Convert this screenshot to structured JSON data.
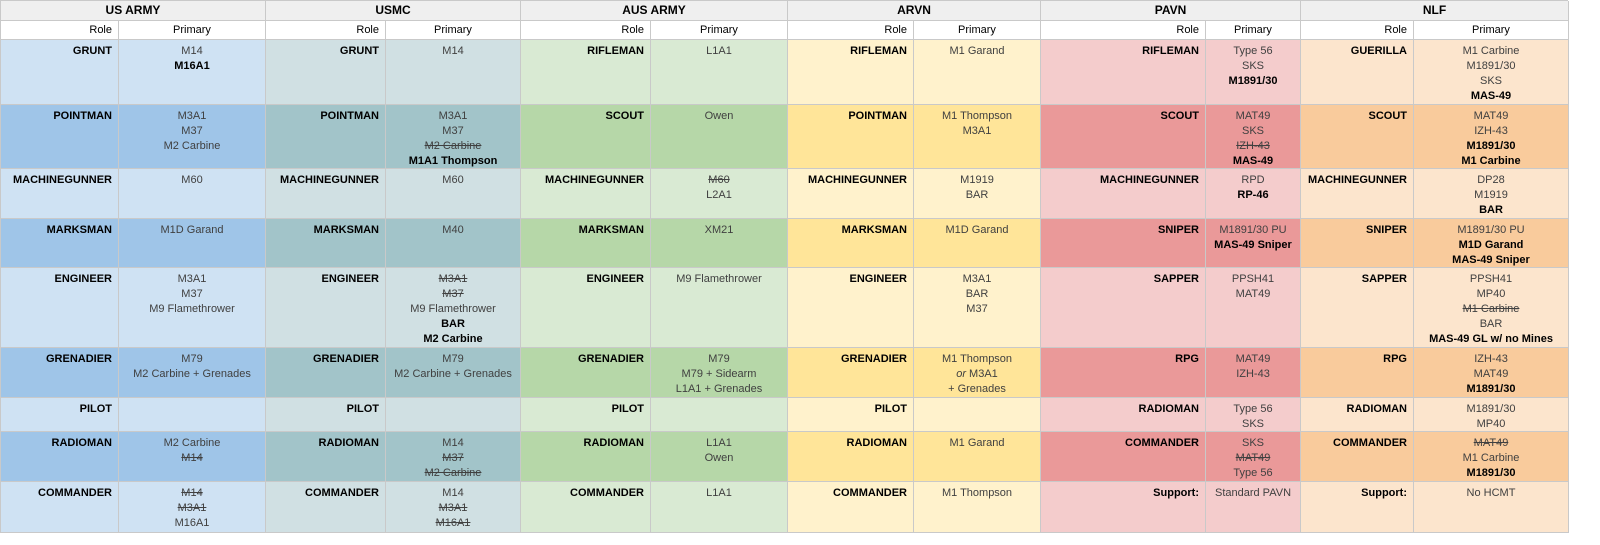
{
  "subheader": {
    "role": "Role",
    "primary": "Primary"
  },
  "grid_color": "#c9c9c9",
  "header_bg": "#efefef",
  "factions": [
    {
      "name": "US ARMY",
      "colors": {
        "light": "#cfe2f3",
        "dark": "#9fc5e8"
      },
      "rows": [
        {
          "role": "GRUNT",
          "weapons": [
            {
              "t": "M14"
            },
            {
              "t": "M16A1",
              "style": "b"
            }
          ]
        },
        {
          "role": "POINTMAN",
          "weapons": [
            {
              "t": "M3A1"
            },
            {
              "t": "M37"
            },
            {
              "t": "M2 Carbine"
            }
          ]
        },
        {
          "role": "MACHINEGUNNER",
          "weapons": [
            {
              "t": "M60"
            }
          ]
        },
        {
          "role": "MARKSMAN",
          "weapons": [
            {
              "t": "M1D Garand"
            }
          ]
        },
        {
          "role": "ENGINEER",
          "weapons": [
            {
              "t": "M3A1"
            },
            {
              "t": "M37"
            },
            {
              "t": "M9 Flamethrower"
            }
          ]
        },
        {
          "role": "GRENADIER",
          "weapons": [
            {
              "t": "M79"
            },
            {
              "t": "M2 Carbine + Grenades"
            }
          ]
        },
        {
          "role": "PILOT",
          "weapons": []
        },
        {
          "role": "RADIOMAN",
          "weapons": [
            {
              "t": "M2 Carbine"
            },
            {
              "t": "M14",
              "style": "s"
            }
          ]
        },
        {
          "role": "COMMANDER",
          "weapons": [
            {
              "t": "M14",
              "style": "s"
            },
            {
              "t": "M3A1",
              "style": "s"
            },
            {
              "t": "M16A1"
            }
          ]
        }
      ]
    },
    {
      "name": "USMC",
      "colors": {
        "light": "#d0e0e3",
        "dark": "#a2c4c9"
      },
      "rows": [
        {
          "role": "GRUNT",
          "weapons": [
            {
              "t": "M14"
            }
          ]
        },
        {
          "role": "POINTMAN",
          "weapons": [
            {
              "t": "M3A1"
            },
            {
              "t": "M37"
            },
            {
              "t": "M2 Carbine",
              "style": "s"
            },
            {
              "t": "M1A1 Thompson",
              "style": "b"
            }
          ]
        },
        {
          "role": "MACHINEGUNNER",
          "weapons": [
            {
              "t": "M60"
            }
          ]
        },
        {
          "role": "MARKSMAN",
          "weapons": [
            {
              "t": "M40"
            }
          ]
        },
        {
          "role": "ENGINEER",
          "weapons": [
            {
              "t": "M3A1",
              "style": "s"
            },
            {
              "t": "M37",
              "style": "s"
            },
            {
              "t": "M9 Flamethrower"
            },
            {
              "t": "BAR",
              "style": "b"
            },
            {
              "t": "M2 Carbine",
              "style": "b"
            }
          ]
        },
        {
          "role": "GRENADIER",
          "weapons": [
            {
              "t": "M79"
            },
            {
              "t": "M2 Carbine + Grenades"
            }
          ]
        },
        {
          "role": "PILOT",
          "weapons": []
        },
        {
          "role": "RADIOMAN",
          "weapons": [
            {
              "t": "M14"
            },
            {
              "t": "M37",
              "style": "s"
            },
            {
              "t": "M2 Carbine",
              "style": "s"
            }
          ]
        },
        {
          "role": "COMMANDER",
          "weapons": [
            {
              "t": "M14"
            },
            {
              "t": "M3A1",
              "style": "s"
            },
            {
              "t": "M16A1",
              "style": "s"
            }
          ]
        }
      ]
    },
    {
      "name": "AUS ARMY",
      "colors": {
        "light": "#d9ead3",
        "dark": "#b6d7a8"
      },
      "rows": [
        {
          "role": "RIFLEMAN",
          "weapons": [
            {
              "t": "L1A1"
            }
          ]
        },
        {
          "role": "SCOUT",
          "weapons": [
            {
              "t": "Owen"
            }
          ]
        },
        {
          "role": "MACHINEGUNNER",
          "weapons": [
            {
              "t": "M60",
              "style": "s"
            },
            {
              "t": "L2A1"
            }
          ]
        },
        {
          "role": "MARKSMAN",
          "weapons": [
            {
              "t": "XM21"
            }
          ]
        },
        {
          "role": "ENGINEER",
          "weapons": [
            {
              "t": "M9 Flamethrower"
            }
          ]
        },
        {
          "role": "GRENADIER",
          "weapons": [
            {
              "t": "M79"
            },
            {
              "t": "M79 + Sidearm"
            },
            {
              "t": "L1A1 + Grenades"
            }
          ]
        },
        {
          "role": "PILOT",
          "weapons": []
        },
        {
          "role": "RADIOMAN",
          "weapons": [
            {
              "t": "L1A1"
            },
            {
              "t": "Owen"
            }
          ]
        },
        {
          "role": "COMMANDER",
          "weapons": [
            {
              "t": "L1A1"
            }
          ]
        }
      ]
    },
    {
      "name": "ARVN",
      "colors": {
        "light": "#fff2cc",
        "dark": "#ffe599"
      },
      "rows": [
        {
          "role": "RIFLEMAN",
          "weapons": [
            {
              "t": "M1 Garand"
            }
          ]
        },
        {
          "role": "POINTMAN",
          "weapons": [
            {
              "t": "M1 Thompson"
            },
            {
              "t": "M3A1"
            }
          ]
        },
        {
          "role": "MACHINEGUNNER",
          "weapons": [
            {
              "t": "M1919"
            },
            {
              "t": "BAR"
            }
          ]
        },
        {
          "role": "MARKSMAN",
          "weapons": [
            {
              "t": "M1D Garand"
            }
          ]
        },
        {
          "role": "ENGINEER",
          "weapons": [
            {
              "t": "M3A1"
            },
            {
              "t": "BAR"
            },
            {
              "t": "M37"
            }
          ]
        },
        {
          "role": "GRENADIER",
          "weapons": [
            {
              "t": "M1 Thompson"
            },
            {
              "t": "or M3A1",
              "style": "or"
            },
            {
              "t": "+ Grenades"
            }
          ]
        },
        {
          "role": "PILOT",
          "weapons": []
        },
        {
          "role": "RADIOMAN",
          "weapons": [
            {
              "t": "M1 Garand"
            }
          ]
        },
        {
          "role": "COMMANDER",
          "weapons": [
            {
              "t": "M1 Thompson"
            }
          ]
        }
      ]
    },
    {
      "name": "PAVN",
      "colors": {
        "light": "#f4cccc",
        "dark": "#ea9999"
      },
      "rows": [
        {
          "role": "RIFLEMAN",
          "weapons": [
            {
              "t": "Type 56"
            },
            {
              "t": "SKS"
            },
            {
              "t": "M1891/30",
              "style": "b"
            }
          ]
        },
        {
          "role": "SCOUT",
          "weapons": [
            {
              "t": "MAT49"
            },
            {
              "t": "SKS"
            },
            {
              "t": "IZH-43",
              "style": "s"
            },
            {
              "t": "MAS-49",
              "style": "b"
            }
          ]
        },
        {
          "role": "MACHINEGUNNER",
          "weapons": [
            {
              "t": "RPD"
            },
            {
              "t": "RP-46",
              "style": "b"
            }
          ]
        },
        {
          "role": "SNIPER",
          "weapons": [
            {
              "t": "M1891/30 PU"
            },
            {
              "t": "MAS-49 Sniper",
              "style": "b"
            }
          ]
        },
        {
          "role": "SAPPER",
          "weapons": [
            {
              "t": "PPSH41"
            },
            {
              "t": "MAT49"
            }
          ]
        },
        {
          "role": "RPG",
          "weapons": [
            {
              "t": "MAT49"
            },
            {
              "t": "IZH-43"
            }
          ]
        },
        {
          "role": "RADIOMAN",
          "weapons": [
            {
              "t": "Type 56"
            },
            {
              "t": "SKS"
            }
          ]
        },
        {
          "role": "COMMANDER",
          "weapons": [
            {
              "t": "SKS"
            },
            {
              "t": "MAT49",
              "style": "s"
            },
            {
              "t": "Type 56"
            }
          ]
        },
        {
          "role": "Support:",
          "weapons": [
            {
              "t": "Standard PAVN"
            }
          ]
        }
      ]
    },
    {
      "name": "NLF",
      "colors": {
        "light": "#fce5cd",
        "dark": "#f9cb9c"
      },
      "rows": [
        {
          "role": "GUERILLA",
          "weapons": [
            {
              "t": "M1 Carbine"
            },
            {
              "t": "M1891/30"
            },
            {
              "t": "SKS"
            },
            {
              "t": "MAS-49",
              "style": "b"
            }
          ]
        },
        {
          "role": "SCOUT",
          "weapons": [
            {
              "t": "MAT49"
            },
            {
              "t": "IZH-43"
            },
            {
              "t": "M1891/30",
              "style": "b"
            },
            {
              "t": "M1 Carbine",
              "style": "b"
            }
          ]
        },
        {
          "role": "MACHINEGUNNER",
          "weapons": [
            {
              "t": "DP28"
            },
            {
              "t": "M1919"
            },
            {
              "t": "BAR",
              "style": "b"
            }
          ]
        },
        {
          "role": "SNIPER",
          "weapons": [
            {
              "t": "M1891/30 PU"
            },
            {
              "t": "M1D Garand",
              "style": "b"
            },
            {
              "t": "MAS-49 Sniper",
              "style": "b"
            }
          ]
        },
        {
          "role": "SAPPER",
          "weapons": [
            {
              "t": "PPSH41"
            },
            {
              "t": "MP40"
            },
            {
              "t": "M1 Carbine",
              "style": "s"
            },
            {
              "t": "BAR"
            },
            {
              "t": "MAS-49 GL w/ no Mines",
              "style": "b"
            }
          ]
        },
        {
          "role": "RPG",
          "weapons": [
            {
              "t": "IZH-43"
            },
            {
              "t": "MAT49"
            },
            {
              "t": "M1891/30",
              "style": "b"
            }
          ]
        },
        {
          "role": "RADIOMAN",
          "weapons": [
            {
              "t": "M1891/30"
            },
            {
              "t": "MP40"
            }
          ]
        },
        {
          "role": "COMMANDER",
          "weapons": [
            {
              "t": "MAT49",
              "style": "s"
            },
            {
              "t": "M1 Carbine"
            },
            {
              "t": "M1891/30",
              "style": "b"
            }
          ]
        },
        {
          "role": "Support:",
          "weapons": [
            {
              "t": "No HCMT"
            }
          ]
        }
      ]
    }
  ]
}
